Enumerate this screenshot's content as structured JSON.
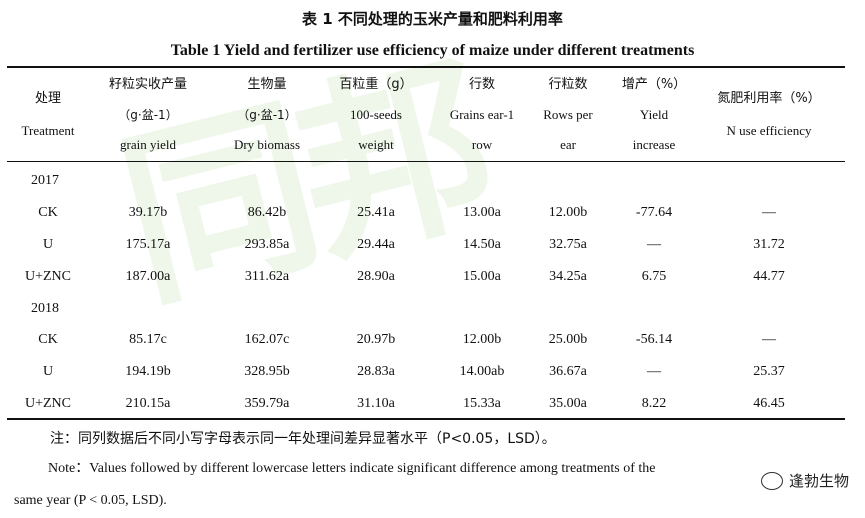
{
  "title_cn": "表 1  不同处理的玉米产量和肥料利用率",
  "title_en": "Table 1 Yield and fertilizer use efficiency of maize under different treatments",
  "watermark_text": "同邦",
  "headers": [
    {
      "cn": "处理",
      "en": "Treatment"
    },
    {
      "cn": "籽粒实收产量",
      "unit": "（g·盆-1）",
      "en": "grain yield"
    },
    {
      "cn": "生物量",
      "unit": "（g·盆-1）",
      "en": "Dry biomass"
    },
    {
      "cn": "百粒重（g）",
      "en1": "100-seeds",
      "en2": "weight"
    },
    {
      "cn": "行数",
      "en1": "Grains ear-1",
      "en2": "row"
    },
    {
      "cn": "行粒数",
      "en1": "Rows per",
      "en2": "ear"
    },
    {
      "cn": "增产（%）",
      "en1": "Yield",
      "en2": "increase"
    },
    {
      "cn": "氮肥利用率（%）",
      "en": "N use efficiency"
    }
  ],
  "groups": [
    {
      "year": "2017",
      "rows": [
        [
          "CK",
          "39.17b",
          "86.42b",
          "25.41a",
          "13.00a",
          "12.00b",
          "-77.64",
          "—"
        ],
        [
          "U",
          "175.17a",
          "293.85a",
          "29.44a",
          "14.50a",
          "32.75a",
          "—",
          "31.72"
        ],
        [
          "U+ZNC",
          "187.00a",
          "311.62a",
          "28.90a",
          "15.00a",
          "34.25a",
          "6.75",
          "44.77"
        ]
      ]
    },
    {
      "year": "2018",
      "rows": [
        [
          "CK",
          "85.17c",
          "162.07c",
          "20.97b",
          "12.00b",
          "25.00b",
          "-56.14",
          "—"
        ],
        [
          "U",
          "194.19b",
          "328.95b",
          "28.83a",
          "14.00ab",
          "36.67a",
          "—",
          "25.37"
        ],
        [
          "U+ZNC",
          "210.15a",
          "359.79a",
          "31.10a",
          "15.33a",
          "35.00a",
          "8.22",
          "46.45"
        ]
      ]
    }
  ],
  "note_cn": "注：同列数据后不同小写字母表示同一年处理间差异显著水平（P<0.05，LSD）。",
  "note_en_line1": "Note：Values followed by different lowercase letters indicate significant difference among treatments of the",
  "note_en_line2": "same year (P < 0.05, LSD).",
  "brand_name": "逢勃生物"
}
